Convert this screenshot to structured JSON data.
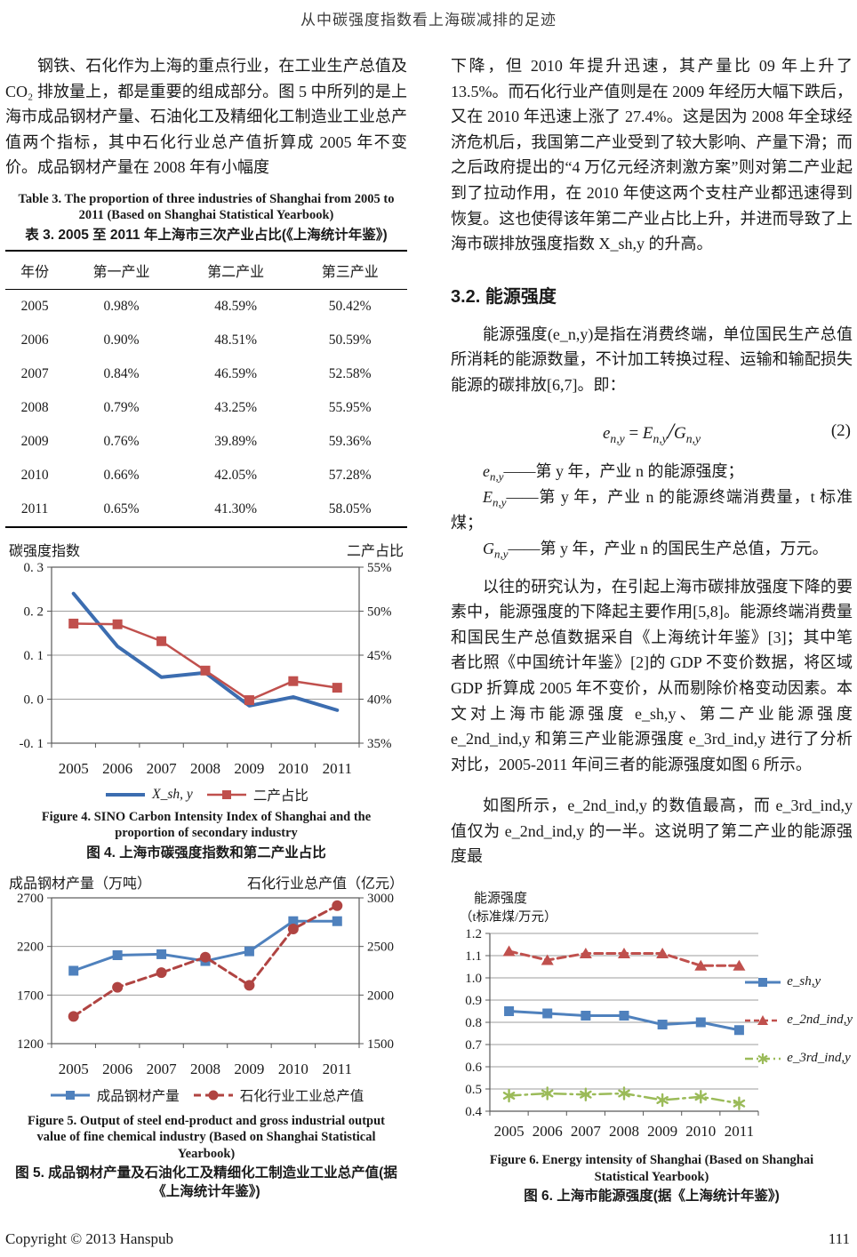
{
  "header": {
    "title": "从中碳强度指数看上海碳减排的足迹"
  },
  "footer": {
    "copyright": "Copyright © 2013 Hanspub",
    "page_number": "111"
  },
  "left_column": {
    "paragraph1": "钢铁、石化作为上海的重点行业，在工业生产总值及 CO₂ 排放量上，都是重要的组成部分。图 5 中所列的是上海市成品钢材产量、石油化工及精细化工制造业工业总产值两个指标，其中石化行业总产值折算成 2005 年不变价。成品钢材产量在 2008 年有小幅度",
    "table3": {
      "caption_en": "Table 3. The proportion of three industries of Shanghai from 2005 to 2011 (Based on Shanghai Statistical Yearbook)",
      "caption_zh": "表 3. 2005 至 2011 年上海市三次产业占比(《上海统计年鉴》)",
      "columns": [
        "年份",
        "第一产业",
        "第二产业",
        "第三产业"
      ],
      "rows": [
        [
          "2005",
          "0.98%",
          "48.59%",
          "50.42%"
        ],
        [
          "2006",
          "0.90%",
          "48.51%",
          "50.59%"
        ],
        [
          "2007",
          "0.84%",
          "46.59%",
          "52.58%"
        ],
        [
          "2008",
          "0.79%",
          "43.25%",
          "55.95%"
        ],
        [
          "2009",
          "0.76%",
          "39.89%",
          "59.36%"
        ],
        [
          "2010",
          "0.66%",
          "42.05%",
          "57.28%"
        ],
        [
          "2011",
          "0.65%",
          "41.30%",
          "58.05%"
        ]
      ]
    },
    "figure4": {
      "left_axis_title": "碳强度指数",
      "right_axis_title": "二产占比",
      "caption_en": "Figure 4. SINO Carbon Intensity Index of Shanghai and the proportion of secondary industry",
      "caption_zh": "图 4. 上海市碳强度指数和第二产业占比"
    },
    "figure5": {
      "left_axis_title": "成品钢材产量（万吨）",
      "right_axis_title": "石化行业总产值（亿元）",
      "caption_en": "Figure 5. Output of steel end-product and gross industrial output value of fine chemical industry (Based on Shanghai Statistical Yearbook)",
      "caption_zh": "图 5. 成品钢材产量及石油化工及精细化工制造业工业总产值(据《上海统计年鉴》)"
    }
  },
  "right_column": {
    "paragraph1": "下降，但 2010 年提升迅速，其产量比 09 年上升了 13.5%。而石化行业产值则是在 2009 年经历大幅下跌后，又在 2010 年迅速上涨了 27.4%。这是因为 2008 年全球经济危机后，我国第二产业受到了较大影响、产量下滑；而之后政府提出的“4 万亿元经济刺激方案”则对第二产业起到了拉动作用，在 2010 年使这两个支柱产业都迅速得到恢复。这也使得该年第二产业占比上升，并进而导致了上海市碳排放强度指数 X_sh,y 的升高。",
    "section_heading": "3.2.  能源强度",
    "paragraph2": "能源强度(e_n,y)是指在消费终端，单位国民生产总值所消耗的能源数量，不计加工转换过程、运输和输配损失能源的碳排放[6,7]。即：",
    "equation": {
      "lhs_base": "e",
      "lhs_sub": "n,y",
      "equals": " = ",
      "num_base": "E",
      "num_sub": "n,y",
      "divide": "/",
      "den_base": "G",
      "den_sub": "n,y",
      "tag": "(2)"
    },
    "definitions": [
      {
        "base": "e",
        "sub": "n,y",
        "text": "——第 y 年，产业 n 的能源强度；"
      },
      {
        "base": "E",
        "sub": "n,y",
        "text": "——第 y 年，产业 n 的能源终端消费量，t 标准煤；"
      },
      {
        "base": "G",
        "sub": "n,y",
        "text": "——第 y 年，产业 n 的国民生产总值，万元。"
      }
    ],
    "paragraph3": "以往的研究认为，在引起上海市碳排放强度下降的要素中，能源强度的下降起主要作用[5,8]。能源终端消费量和国民生产总值数据采自《上海统计年鉴》[3]；其中笔者比照《中国统计年鉴》[2]的 GDP 不变价数据，将区域 GDP 折算成 2005 年不变价，从而剔除价格变动因素。本文对上海市能源强度 e_sh,y、第二产业能源强度 e_2nd_ind,y 和第三产业能源强度 e_3rd_ind,y 进行了分析对比，2005-2011 年间三者的能源强度如图 6 所示。",
    "paragraph4": "如图所示，e_2nd_ind,y 的数值最高，而 e_3rd_ind,y 值仅为 e_2nd_ind,y 的一半。这说明了第二产业的能源强度最",
    "figure6": {
      "axis_title_line1": "能源强度",
      "axis_title_line2": "（t标准煤/万元）",
      "caption_en": "Figure 6. Energy intensity of Shanghai (Based on Shanghai Statistical Yearbook)",
      "caption_zh": "图 6. 上海市能源强度(据《上海统计年鉴》)"
    }
  },
  "chart_data": [
    {
      "id": "fig4",
      "type": "line",
      "title": "上海市碳强度指数和第二产业占比",
      "x": [
        "2005",
        "2006",
        "2007",
        "2008",
        "2009",
        "2010",
        "2011"
      ],
      "left_axis": {
        "label": "碳强度指数",
        "min": -0.1,
        "max": 0.3,
        "ticks": [
          0.3,
          0.2,
          0.1,
          0.0,
          -0.1
        ],
        "tick_labels": [
          "0. 3",
          "0. 2",
          "0. 1",
          "0. 0",
          "-0. 1"
        ]
      },
      "right_axis": {
        "label": "二产占比",
        "min": 35,
        "max": 55,
        "ticks": [
          55,
          50,
          45,
          40,
          35
        ],
        "tick_labels": [
          "55%",
          "50%",
          "45%",
          "40%",
          "35%"
        ]
      },
      "grid": true,
      "legend_position": "bottom",
      "series": [
        {
          "name": "X_sh, y",
          "axis": "left",
          "color": "#3c6db0",
          "dash": "solid",
          "marker": "none",
          "stroke_width": 4,
          "values": [
            0.24,
            0.12,
            0.05,
            0.06,
            -0.015,
            0.005,
            -0.025
          ]
        },
        {
          "name": "二产占比",
          "axis": "right",
          "color": "#c0504d",
          "dash": "solid",
          "marker": "square",
          "stroke_width": 2.5,
          "values": [
            48.59,
            48.51,
            46.59,
            43.25,
            39.89,
            42.05,
            41.3
          ]
        }
      ]
    },
    {
      "id": "fig5",
      "type": "line",
      "title": "成品钢材产量及石化行业工业总产值",
      "x": [
        "2005",
        "2006",
        "2007",
        "2008",
        "2009",
        "2010",
        "2011"
      ],
      "left_axis": {
        "label": "成品钢材产量（万吨）",
        "min": 1200,
        "max": 2700,
        "ticks": [
          2700,
          2200,
          1700,
          1200
        ],
        "tick_labels": [
          "2700",
          "2200",
          "1700",
          "1200"
        ]
      },
      "right_axis": {
        "label": "石化行业总产值（亿元）",
        "min": 1500,
        "max": 3000,
        "ticks": [
          3000,
          2500,
          2000,
          1500
        ],
        "tick_labels": [
          "3000",
          "2500",
          "2000",
          "1500"
        ]
      },
      "grid": true,
      "legend_position": "bottom",
      "series": [
        {
          "name": "成品钢材产量",
          "axis": "left",
          "color": "#4f81bd",
          "dash": "solid",
          "marker": "square",
          "stroke_width": 3,
          "values": [
            1950,
            2110,
            2120,
            2050,
            2150,
            2460,
            2460
          ]
        },
        {
          "name": "石化行业工业总产值",
          "axis": "right",
          "color": "#b04442",
          "dash": "dashed",
          "marker": "circle",
          "stroke_width": 3,
          "values": [
            1780,
            2080,
            2230,
            2390,
            2100,
            2680,
            2920
          ]
        }
      ]
    },
    {
      "id": "fig6",
      "type": "line",
      "title": "上海市能源强度",
      "ylabel": "能源强度（t标准煤/万元）",
      "x": [
        "2005",
        "2006",
        "2007",
        "2008",
        "2009",
        "2010",
        "2011"
      ],
      "left_axis": {
        "label": "能源强度（t标准煤/万元）",
        "min": 0.4,
        "max": 1.2,
        "ticks": [
          1.2,
          1.1,
          1.0,
          0.9,
          0.8,
          0.7,
          0.6,
          0.5,
          0.4
        ],
        "tick_labels": [
          "1.2",
          "1.1",
          "1.0",
          "0.9",
          "0.8",
          "0.7",
          "0.6",
          "0.5",
          "0.4"
        ]
      },
      "grid": true,
      "legend_position": "right",
      "series": [
        {
          "name": "e_sh,y",
          "axis": "left",
          "color": "#4f81bd",
          "dash": "solid",
          "marker": "square",
          "stroke_width": 3,
          "values": [
            0.85,
            0.84,
            0.83,
            0.83,
            0.79,
            0.8,
            0.765
          ]
        },
        {
          "name": "e_2nd_ind,y",
          "axis": "left",
          "color": "#c0504d",
          "dash": "dashed",
          "marker": "triangle",
          "stroke_width": 3,
          "values": [
            1.12,
            1.08,
            1.11,
            1.11,
            1.11,
            1.055,
            1.055
          ]
        },
        {
          "name": "e_3rd_ind,y",
          "axis": "left",
          "color": "#9bbb59",
          "dash": "dashdot",
          "marker": "star",
          "stroke_width": 2.5,
          "values": [
            0.47,
            0.48,
            0.475,
            0.48,
            0.45,
            0.465,
            0.435
          ]
        }
      ]
    }
  ]
}
